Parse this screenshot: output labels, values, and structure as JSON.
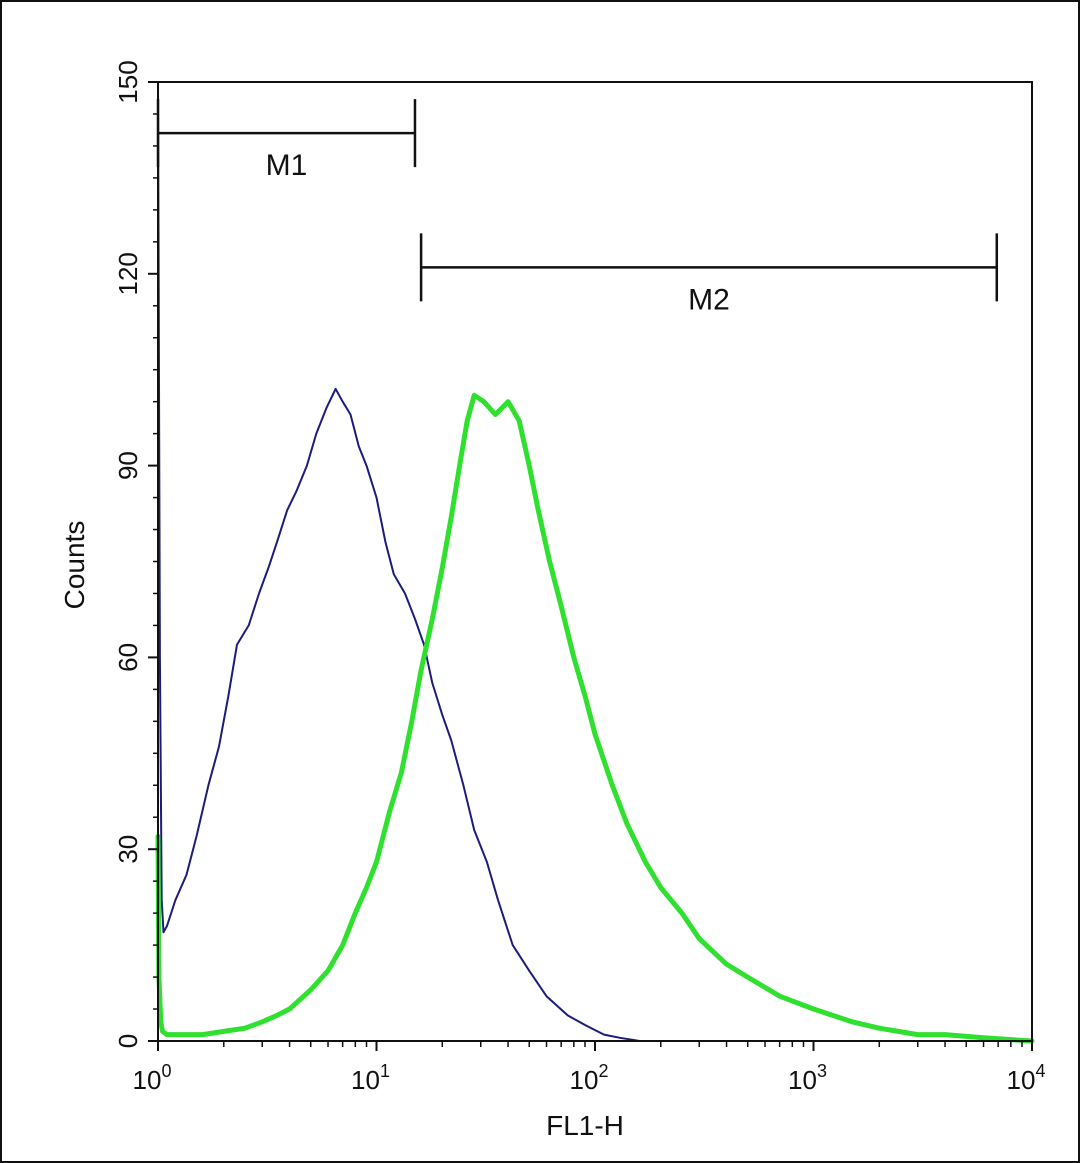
{
  "chart_data": {
    "type": "line",
    "xlabel": "FL1-H",
    "ylabel": "Counts",
    "xscale": "log",
    "xlim": [
      1,
      10000
    ],
    "ylim": [
      0,
      150
    ],
    "x_ticks": [
      {
        "base": "10",
        "exp": "0",
        "value": 1
      },
      {
        "base": "10",
        "exp": "1",
        "value": 10
      },
      {
        "base": "10",
        "exp": "2",
        "value": 100
      },
      {
        "base": "10",
        "exp": "3",
        "value": 1000
      },
      {
        "base": "10",
        "exp": "4",
        "value": 10000
      }
    ],
    "y_ticks": [
      "0",
      "30",
      "60",
      "90",
      "120",
      "150"
    ],
    "grid": false,
    "markers": [
      {
        "label": "M1",
        "x_start": 1,
        "x_end": 15,
        "y": 142
      },
      {
        "label": "M2",
        "x_start": 16,
        "x_end": 6900,
        "y": 121
      }
    ],
    "series": [
      {
        "color": "#1c1c7a",
        "x": [
          1.0,
          1.02,
          1.04,
          1.06,
          1.1,
          1.2,
          1.35,
          1.5,
          1.7,
          1.9,
          2.1,
          2.3,
          2.6,
          2.9,
          3.2,
          3.5,
          3.9,
          4.3,
          4.8,
          5.3,
          5.9,
          6.5,
          7.0,
          7.6,
          8.3,
          9.0,
          10.0,
          11.0,
          12.0,
          13.5,
          15.0,
          16.5,
          18.0,
          20.0,
          22.0,
          25.0,
          28.0,
          32.0,
          36.0,
          42.0,
          50.0,
          60.0,
          75.0,
          90.0,
          110.0,
          130.0,
          160.0,
          300.0,
          1000.0,
          10000.0
        ],
        "y": [
          150,
          60,
          22,
          17,
          18,
          22,
          26,
          32,
          40,
          46,
          54,
          62,
          65,
          70,
          74,
          78,
          83,
          86,
          90,
          95,
          99,
          102,
          100,
          98,
          93,
          90,
          85,
          78,
          73,
          70,
          66,
          62,
          56,
          51,
          47,
          40,
          33,
          28,
          22,
          15,
          11,
          7,
          4,
          2.5,
          1,
          0.5,
          0,
          0,
          0,
          0
        ]
      },
      {
        "color": "#2fe02f",
        "x": [
          1.0,
          1.01,
          1.03,
          1.05,
          1.1,
          1.2,
          1.4,
          1.6,
          2.0,
          2.5,
          3.0,
          3.5,
          4.0,
          5.0,
          6.0,
          7.0,
          8.0,
          9.0,
          10.0,
          11.5,
          13.0,
          14.5,
          16.0,
          18.0,
          20.0,
          22.0,
          24.0,
          26.0,
          28.0,
          31.0,
          35.0,
          40.0,
          45.0,
          50.0,
          55.0,
          62.0,
          70.0,
          80.0,
          90.0,
          100.0,
          120.0,
          140.0,
          170.0,
          200.0,
          250.0,
          300.0,
          400.0,
          500.0,
          700.0,
          1000.0,
          1500.0,
          2000.0,
          3000.0,
          4000.0,
          6000.0,
          10000.0
        ],
        "y": [
          32,
          10,
          3,
          1.5,
          1,
          1,
          1,
          1,
          1.5,
          2,
          3,
          4,
          5,
          8,
          11,
          15,
          20,
          24,
          28,
          36,
          42,
          50,
          58,
          66,
          74,
          82,
          90,
          97,
          101,
          100,
          98,
          100,
          97,
          90,
          83,
          75,
          68,
          60,
          54,
          48,
          40,
          34,
          28,
          24,
          20,
          16,
          12,
          10,
          7,
          5,
          3,
          2,
          1,
          1,
          0.5,
          0
        ]
      }
    ]
  }
}
